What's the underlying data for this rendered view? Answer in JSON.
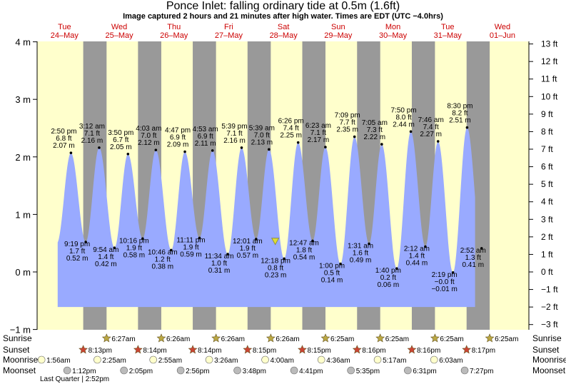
{
  "header": {
    "title": "Ponce Inlet: falling  ordinary tide at 0.5m (1.6ft)",
    "subtitle": "Image captured 2 hours and 21 minutes after high water. Times are EDT (UTC −4.0hrs)"
  },
  "days": [
    {
      "dow": "Tue",
      "date": "24–May"
    },
    {
      "dow": "Wed",
      "date": "25–May"
    },
    {
      "dow": "Thu",
      "date": "26–May"
    },
    {
      "dow": "Fri",
      "date": "27–May"
    },
    {
      "dow": "Sat",
      "date": "28–May"
    },
    {
      "dow": "Sun",
      "date": "29–May"
    },
    {
      "dow": "Mon",
      "date": "30–May"
    },
    {
      "dow": "Tue",
      "date": "31–May"
    },
    {
      "dow": "Wed",
      "date": "01–Jun"
    }
  ],
  "axes": {
    "left_ticks": [
      "4 m",
      "3 m",
      "2 m",
      "1 m",
      "0 m",
      "−1 m"
    ],
    "right_ticks": [
      "13 ft",
      "12 ft",
      "11 ft",
      "10 ft",
      "9 ft",
      "8 ft",
      "7 ft",
      "6 ft",
      "5 ft",
      "4 ft",
      "3 ft",
      "2 ft",
      "1 ft",
      "0 ft",
      "−1 ft",
      "−2 ft",
      "−3 ft"
    ]
  },
  "chart_data": {
    "type": "area",
    "title": "Ponce Inlet: falling  ordinary tide at 0.5m (1.6ft)",
    "y_unit": "m",
    "ylim": [
      -1,
      4
    ],
    "x_range": [
      "2022-05-24 00:00",
      "2022-06-01 00:00"
    ],
    "current_level_m": 0.5,
    "tide_events": [
      {
        "time": "2:50 pm",
        "ft": "6.8 ft",
        "m": "2.07 m",
        "type": "high"
      },
      {
        "time": "9:19 pm",
        "ft": "1.7 ft",
        "m": "0.52 m",
        "type": "low"
      },
      {
        "time": "3:12 am",
        "ft": "7.1 ft",
        "m": "2.16 m",
        "type": "high"
      },
      {
        "time": "9:54 am",
        "ft": "1.4 ft",
        "m": "0.42 m",
        "type": "low"
      },
      {
        "time": "3:50 pm",
        "ft": "6.7 ft",
        "m": "2.05 m",
        "type": "high"
      },
      {
        "time": "10:16 pm",
        "ft": "1.9 ft",
        "m": "0.58 m",
        "type": "low"
      },
      {
        "time": "4:03 am",
        "ft": "7.0 ft",
        "m": "2.12 m",
        "type": "high"
      },
      {
        "time": "10:46 am",
        "ft": "1.2 ft",
        "m": "0.38 m",
        "type": "low"
      },
      {
        "time": "4:47 pm",
        "ft": "6.9 ft",
        "m": "2.09 m",
        "type": "high"
      },
      {
        "time": "11:11 pm",
        "ft": "1.9 ft",
        "m": "0.59 m",
        "type": "low"
      },
      {
        "time": "4:53 am",
        "ft": "6.9 ft",
        "m": "2.11 m",
        "type": "high"
      },
      {
        "time": "11:34 am",
        "ft": "1.0 ft",
        "m": "0.31 m",
        "type": "low"
      },
      {
        "time": "5:39 pm",
        "ft": "7.1 ft",
        "m": "2.16 m",
        "type": "high"
      },
      {
        "time": "12:01 am",
        "ft": "1.9 ft",
        "m": "0.57 m",
        "type": "low"
      },
      {
        "time": "5:39 am",
        "ft": "7.0 ft",
        "m": "2.13 m",
        "type": "high"
      },
      {
        "time": "12:18 pm",
        "ft": "0.8 ft",
        "m": "0.23 m",
        "type": "low"
      },
      {
        "time": "6:26 pm",
        "ft": "7.4 ft",
        "m": "2.25 m",
        "type": "high"
      },
      {
        "time": "12:47 am",
        "ft": "1.8 ft",
        "m": "0.54 m",
        "type": "low"
      },
      {
        "time": "6:23 am",
        "ft": "7.1 ft",
        "m": "2.17 m",
        "type": "high"
      },
      {
        "time": "1:00 pm",
        "ft": "0.5 ft",
        "m": "0.14 m",
        "type": "low"
      },
      {
        "time": "7:09 pm",
        "ft": "7.7 ft",
        "m": "2.35 m",
        "type": "high"
      },
      {
        "time": "1:31 am",
        "ft": "1.6 ft",
        "m": "0.49 m",
        "type": "low"
      },
      {
        "time": "7:05 am",
        "ft": "7.3 ft",
        "m": "2.22 m",
        "type": "high"
      },
      {
        "time": "1:40 pm",
        "ft": "0.2 ft",
        "m": "0.06 m",
        "type": "low"
      },
      {
        "time": "7:50 pm",
        "ft": "8.0 ft",
        "m": "2.44 m",
        "type": "high"
      },
      {
        "time": "2:12 am",
        "ft": "1.4 ft",
        "m": "0.44 m",
        "type": "low"
      },
      {
        "time": "7:46 am",
        "ft": "7.4 ft",
        "m": "2.27 m",
        "type": "high"
      },
      {
        "time": "2:19 pm",
        "ft": "−0.0 ft",
        "m": "−0.01 m",
        "type": "low"
      },
      {
        "time": "8:30 pm",
        "ft": "8.2 ft",
        "m": "2.51 m",
        "type": "high"
      },
      {
        "time": "2:52 am",
        "ft": "1.3 ft",
        "m": "0.41 m",
        "type": "low"
      }
    ]
  },
  "almanac": {
    "row_labels": {
      "sunrise": "Sunrise",
      "sunset": "Sunset",
      "moonrise": "Moonrise",
      "moonset": "Moonset"
    },
    "sunrise": [
      "6:27am",
      "6:26am",
      "6:26am",
      "6:26am",
      "6:25am",
      "6:25am",
      "6:25am",
      "6:25am"
    ],
    "sunset": [
      "8:13pm",
      "8:14pm",
      "8:14pm",
      "8:15pm",
      "8:15pm",
      "8:16pm",
      "8:16pm",
      "8:17pm"
    ],
    "moonrise": [
      "1:56am",
      "2:25am",
      "2:55am",
      "3:26am",
      "4:00am",
      "4:36am",
      "5:17am",
      "6:03am"
    ],
    "moonset": [
      "1:12pm",
      "2:05pm",
      "2:56pm",
      "3:48pm",
      "4:41pm",
      "5:35pm",
      "6:31pm",
      "7:27pm"
    ],
    "moon_phase": "Last Quarter | 2:52pm"
  },
  "colors": {
    "day": "#ffffcc",
    "night": "#999999",
    "water": "#99aaff",
    "day_label": "#cc0000",
    "sun_icon": "#bba844",
    "sunset_icon": "#cc4433",
    "moonrise_icon": "#ffffcc",
    "moonset_icon": "#bbbbbb",
    "marker": "#dddd33"
  }
}
